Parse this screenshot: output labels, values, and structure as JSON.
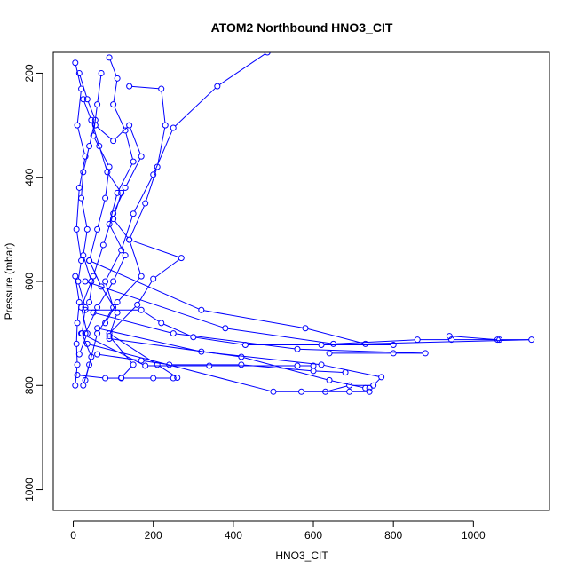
{
  "chart_data": {
    "type": "scatter",
    "title": "ATOM2 Northbound HNO3_CIT",
    "xlabel": "HNO3_CIT",
    "ylabel": "Pressure (mbar)",
    "xlim": [
      -50,
      1190
    ],
    "ylim": [
      1040,
      160
    ],
    "y_axis_inverted": true,
    "x_ticks": [
      0,
      200,
      400,
      600,
      800,
      1000
    ],
    "y_ticks": [
      200,
      400,
      600,
      800,
      1000
    ],
    "grid": false,
    "legend": "none",
    "color": "#0000ff",
    "series": [
      {
        "points": [
          [
            5,
            180
          ],
          [
            20,
            230
          ],
          [
            10,
            300
          ],
          [
            30,
            360
          ],
          [
            15,
            420
          ],
          [
            8,
            500
          ],
          [
            20,
            560
          ],
          [
            12,
            600
          ],
          [
            30,
            650
          ],
          [
            22,
            700
          ],
          [
            45,
            745
          ],
          [
            30,
            790
          ]
        ]
      },
      {
        "points": [
          [
            70,
            200
          ],
          [
            60,
            260
          ],
          [
            50,
            320
          ],
          [
            90,
            380
          ],
          [
            80,
            440
          ],
          [
            60,
            500
          ],
          [
            40,
            560
          ],
          [
            70,
            610
          ],
          [
            110,
            660
          ],
          [
            90,
            705
          ],
          [
            150,
            760
          ],
          [
            120,
            785
          ]
        ]
      },
      {
        "points": [
          [
            485,
            160
          ],
          [
            360,
            225
          ],
          [
            250,
            305
          ],
          [
            200,
            395
          ],
          [
            150,
            470
          ],
          [
            120,
            540
          ],
          [
            80,
            600
          ],
          [
            100,
            650
          ],
          [
            60,
            700
          ],
          [
            40,
            760
          ],
          [
            25,
            800
          ]
        ]
      },
      {
        "points": [
          [
            140,
            225
          ],
          [
            220,
            230
          ],
          [
            230,
            300
          ],
          [
            210,
            380
          ],
          [
            180,
            450
          ],
          [
            140,
            520
          ],
          [
            270,
            555
          ],
          [
            200,
            595
          ],
          [
            160,
            645
          ],
          [
            90,
            700
          ],
          [
            210,
            760
          ],
          [
            260,
            785
          ]
        ]
      },
      {
        "points": [
          [
            40,
            560
          ],
          [
            320,
            655
          ],
          [
            580,
            690
          ],
          [
            730,
            720
          ],
          [
            1145,
            712
          ],
          [
            1060,
            712
          ],
          [
            940,
            705
          ]
        ]
      },
      {
        "points": [
          [
            30,
            600
          ],
          [
            380,
            690
          ],
          [
            650,
            720
          ],
          [
            860,
            712
          ],
          [
            945,
            712
          ],
          [
            1065,
            712
          ]
        ]
      },
      {
        "points": [
          [
            50,
            660
          ],
          [
            250,
            700
          ],
          [
            560,
            730
          ],
          [
            880,
            738
          ],
          [
            800,
            738
          ],
          [
            640,
            738
          ]
        ]
      },
      {
        "points": [
          [
            60,
            690
          ],
          [
            320,
            735
          ],
          [
            620,
            760
          ],
          [
            770,
            784
          ],
          [
            750,
            800
          ],
          [
            690,
            800
          ],
          [
            630,
            812
          ]
        ]
      },
      {
        "points": [
          [
            20,
            700
          ],
          [
            180,
            762
          ],
          [
            340,
            762
          ],
          [
            560,
            762
          ],
          [
            600,
            762
          ]
        ]
      },
      {
        "points": [
          [
            35,
            720
          ],
          [
            500,
            812
          ],
          [
            570,
            812
          ],
          [
            690,
            812
          ],
          [
            740,
            812
          ]
        ]
      },
      {
        "points": [
          [
            90,
            710
          ],
          [
            420,
            745
          ],
          [
            640,
            790
          ],
          [
            730,
            805
          ],
          [
            740,
            805
          ]
        ]
      },
      {
        "points": [
          [
            10,
            780
          ],
          [
            80,
            786
          ],
          [
            120,
            786
          ],
          [
            200,
            786
          ],
          [
            250,
            786
          ]
        ]
      },
      {
        "points": [
          [
            5,
            590
          ],
          [
            15,
            640
          ],
          [
            10,
            680
          ],
          [
            8,
            720
          ],
          [
            10,
            760
          ],
          [
            5,
            800
          ]
        ]
      },
      {
        "points": [
          [
            55,
            300
          ],
          [
            100,
            330
          ],
          [
            140,
            300
          ],
          [
            170,
            360
          ],
          [
            130,
            420
          ],
          [
            100,
            470
          ],
          [
            75,
            530
          ],
          [
            50,
            590
          ],
          [
            40,
            640
          ]
        ]
      },
      {
        "points": [
          [
            25,
            250
          ],
          [
            45,
            290
          ],
          [
            65,
            340
          ],
          [
            85,
            390
          ],
          [
            120,
            430
          ],
          [
            100,
            480
          ],
          [
            140,
            520
          ],
          [
            170,
            590
          ],
          [
            110,
            640
          ],
          [
            80,
            680
          ]
        ]
      },
      {
        "points": [
          [
            90,
            170
          ],
          [
            110,
            210
          ],
          [
            100,
            260
          ],
          [
            130,
            310
          ],
          [
            150,
            370
          ],
          [
            110,
            430
          ],
          [
            90,
            490
          ],
          [
            130,
            550
          ],
          [
            100,
            600
          ],
          [
            60,
            650
          ],
          [
            30,
            700
          ]
        ]
      },
      {
        "points": [
          [
            15,
            200
          ],
          [
            35,
            250
          ],
          [
            55,
            290
          ],
          [
            40,
            340
          ],
          [
            25,
            390
          ],
          [
            20,
            440
          ],
          [
            35,
            500
          ],
          [
            25,
            550
          ],
          [
            45,
            600
          ],
          [
            20,
            650
          ],
          [
            35,
            700
          ],
          [
            15,
            740
          ]
        ]
      },
      {
        "points": [
          [
            30,
            655
          ],
          [
            170,
            655
          ],
          [
            220,
            680
          ],
          [
            300,
            707
          ],
          [
            430,
            722
          ],
          [
            620,
            722
          ],
          [
            800,
            722
          ]
        ]
      },
      {
        "points": [
          [
            60,
            740
          ],
          [
            170,
            752
          ],
          [
            240,
            760
          ],
          [
            420,
            760
          ],
          [
            600,
            772
          ],
          [
            680,
            775
          ]
        ]
      }
    ]
  }
}
